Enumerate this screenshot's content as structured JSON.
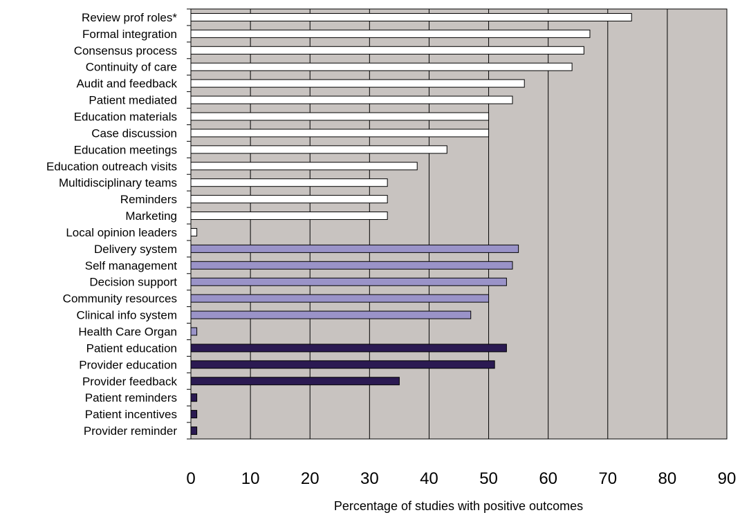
{
  "chart_data": {
    "type": "bar",
    "orientation": "horizontal",
    "title": "",
    "xlabel": "Percentage of studies with positive outcomes",
    "ylabel": "",
    "xlim": [
      0,
      90
    ],
    "xticks": [
      "0",
      "10",
      "20",
      "30",
      "40",
      "50",
      "60",
      "70",
      "80",
      "90"
    ],
    "grid": "vertical gridlines",
    "legend": "none",
    "plot_background": "#c8c3c0",
    "categories": [
      "Review prof roles*",
      "Formal integration",
      "Consensus process",
      "Continuity of care",
      "Audit and feedback",
      "Patient mediated",
      "Education materials",
      "Case discussion",
      "Education meetings",
      "Education outreach visits",
      "Multidisciplinary teams",
      "Reminders",
      "Marketing",
      "Local opinion leaders",
      "Delivery system",
      "Self management",
      "Decision support",
      "Community resources",
      "Clinical info system",
      "Health Care Organ",
      "Patient education",
      "Provider education",
      "Provider feedback",
      "Patient reminders",
      "Patient incentives",
      "Provider reminder"
    ],
    "values": [
      74,
      67,
      66,
      64,
      56,
      54,
      50,
      50,
      43,
      38,
      33,
      33,
      33,
      1,
      55,
      54,
      53,
      50,
      47,
      1,
      53,
      51,
      35,
      1,
      1,
      1
    ],
    "groups": [
      {
        "color": "#ffffff",
        "start": 0,
        "count": 14
      },
      {
        "color": "#9a93c8",
        "start": 14,
        "count": 6
      },
      {
        "color": "#2b1a52",
        "start": 20,
        "count": 6
      }
    ]
  }
}
